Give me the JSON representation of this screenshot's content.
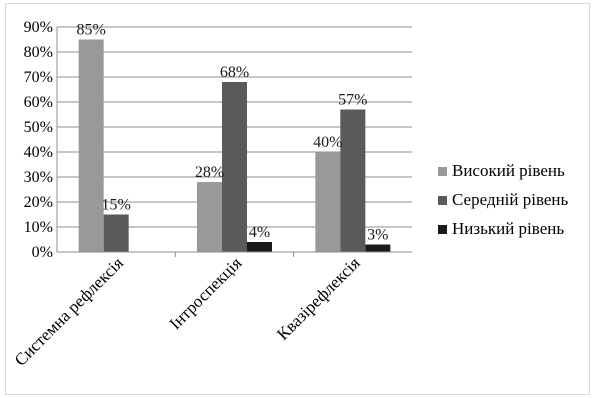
{
  "chart_data": {
    "type": "bar",
    "categories": [
      "Системна рефлексія",
      "Інтроспекція",
      "Квазірефлексія"
    ],
    "series": [
      {
        "name": "Високий рівень",
        "values": [
          85,
          28,
          40
        ],
        "labels": [
          "85%",
          "28%",
          "40%"
        ],
        "color": "#999999"
      },
      {
        "name": "Середній рівень",
        "values": [
          15,
          68,
          57
        ],
        "labels": [
          "15%",
          "68%",
          "57%"
        ],
        "color": "#5a5a5a"
      },
      {
        "name": "Низький рівень",
        "values": [
          0,
          4,
          3
        ],
        "labels": [
          "",
          "4%",
          "3%"
        ],
        "color": "#1a1a1a"
      }
    ],
    "yticks": [
      "0%",
      "10%",
      "20%",
      "30%",
      "40%",
      "50%",
      "60%",
      "70%",
      "80%",
      "90%"
    ],
    "ylim": [
      0,
      90
    ],
    "grid": true,
    "legend_position": "right",
    "title": "",
    "xlabel": "",
    "ylabel": ""
  }
}
